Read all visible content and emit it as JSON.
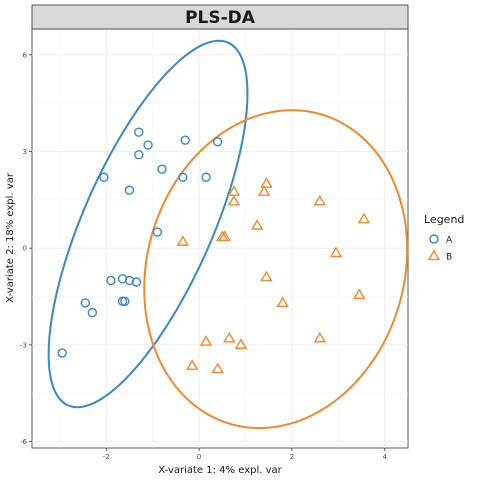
{
  "chart_data": {
    "type": "scatter",
    "title": "PLS-DA",
    "xlabel": "X-variate 1: 4% expl. var",
    "ylabel": "X-variate 2: 18% expl. var",
    "xlim": [
      -3.6,
      4.5
    ],
    "ylim": [
      -6.2,
      6.8
    ],
    "xticks": [
      -2,
      0,
      2,
      4
    ],
    "yticks": [
      -6,
      -3,
      0,
      3,
      6
    ],
    "grid": true,
    "legend": {
      "title": "Legend",
      "position": "right"
    },
    "series": [
      {
        "name": "A",
        "marker": "circle",
        "color": "#3a87c1",
        "points": [
          [
            -1.3,
            3.6
          ],
          [
            -1.1,
            3.2
          ],
          [
            -0.3,
            3.35
          ],
          [
            0.4,
            3.3
          ],
          [
            -1.3,
            2.9
          ],
          [
            -0.8,
            2.45
          ],
          [
            -2.05,
            2.2
          ],
          [
            -0.35,
            2.2
          ],
          [
            0.15,
            2.2
          ],
          [
            -1.5,
            1.8
          ],
          [
            -0.9,
            0.5
          ],
          [
            -1.9,
            -1.0
          ],
          [
            -1.65,
            -0.95
          ],
          [
            -1.5,
            -1.0
          ],
          [
            -1.35,
            -1.05
          ],
          [
            -2.45,
            -1.7
          ],
          [
            -1.65,
            -1.65
          ],
          [
            -1.6,
            -1.65
          ],
          [
            -2.3,
            -2.0
          ],
          [
            -2.95,
            -3.25
          ]
        ],
        "ellipse": {
          "center": [
            -1.1,
            0.75
          ],
          "half_major": 5.9,
          "half_minor": 1.45,
          "angle_deg": 74
        }
      },
      {
        "name": "B",
        "marker": "triangle",
        "color": "#eb8a33",
        "points": [
          [
            1.45,
            2.0
          ],
          [
            0.75,
            1.75
          ],
          [
            1.4,
            1.75
          ],
          [
            0.75,
            1.45
          ],
          [
            2.6,
            1.45
          ],
          [
            3.55,
            0.9
          ],
          [
            1.25,
            0.7
          ],
          [
            0.5,
            0.35
          ],
          [
            0.55,
            0.35
          ],
          [
            -0.35,
            0.2
          ],
          [
            2.95,
            -0.15
          ],
          [
            1.45,
            -0.9
          ],
          [
            3.45,
            -1.45
          ],
          [
            1.8,
            -1.7
          ],
          [
            2.6,
            -2.8
          ],
          [
            0.15,
            -2.9
          ],
          [
            0.65,
            -2.8
          ],
          [
            0.9,
            -3.0
          ],
          [
            -0.15,
            -3.65
          ],
          [
            0.4,
            -3.75
          ]
        ],
        "ellipse": {
          "center": [
            1.65,
            -0.65
          ],
          "half_major": 4.95,
          "half_minor": 2.8,
          "angle_deg": 84
        }
      }
    ]
  }
}
